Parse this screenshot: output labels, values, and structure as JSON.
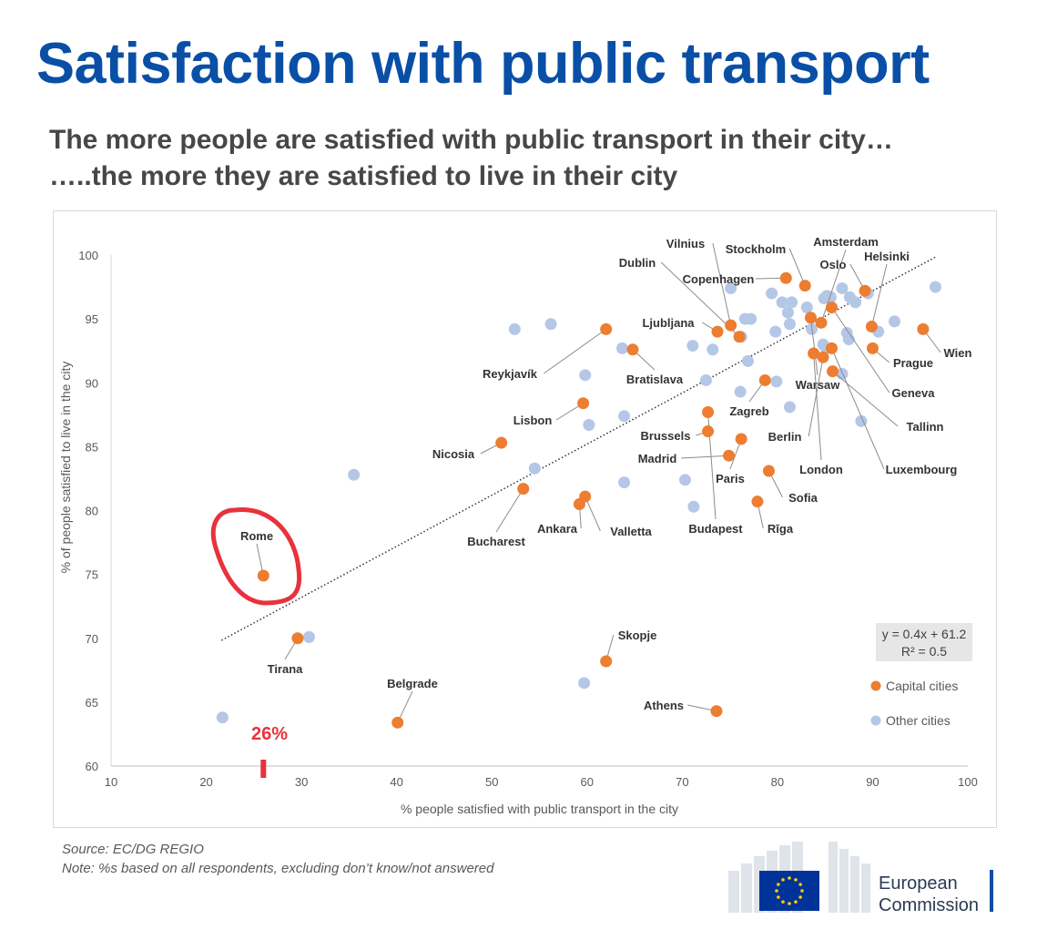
{
  "title": "Satisfaction with public transport",
  "subtitle_line1": "The more people are satisfied with public transport in their city…",
  "subtitle_line2": "…..the more they are satisfied to live in their city",
  "source": "Source: EC/DG REGIO",
  "note": "Note: %s based on all respondents, excluding don’t know/not answered",
  "logo": {
    "line1": "European",
    "line2": "Commission"
  },
  "annotation": {
    "label": "26%",
    "highlighted_city": "Rome",
    "color": "#e8323c"
  },
  "chart_data": {
    "type": "scatter",
    "title": "",
    "xlabel": "% people satisfied with public transport in the city",
    "ylabel": "% of people satisfied to live in the city",
    "xlim": [
      10,
      100
    ],
    "ylim": [
      60,
      100
    ],
    "xticks": [
      10,
      20,
      30,
      40,
      50,
      60,
      70,
      80,
      90,
      100
    ],
    "yticks": [
      60,
      65,
      70,
      75,
      80,
      85,
      90,
      95,
      100
    ],
    "grid": false,
    "legend_position": "right",
    "trendline": {
      "equation": "y = 0.4x + 61.2",
      "r2": "R² = 0.5",
      "slope": 0.4,
      "intercept": 61.2,
      "x_range": [
        21.6,
        96.7
      ]
    },
    "colors": {
      "capital": "#ed7d31",
      "other": "#b4c7e7"
    },
    "series": [
      {
        "name": "Capital cities",
        "points": [
          {
            "label": "Rome",
            "x": 26.0,
            "y": 74.9
          },
          {
            "label": "Tirana",
            "x": 29.6,
            "y": 70.0
          },
          {
            "label": "Belgrade",
            "x": 40.1,
            "y": 63.4
          },
          {
            "label": "Skopje",
            "x": 62.0,
            "y": 68.2
          },
          {
            "label": "Athens",
            "x": 73.6,
            "y": 64.3
          },
          {
            "label": "Bucharest",
            "x": 53.3,
            "y": 81.7
          },
          {
            "label": "Ankara",
            "x": 59.2,
            "y": 80.5
          },
          {
            "label": "Valletta",
            "x": 59.8,
            "y": 81.1
          },
          {
            "label": "Nicosia",
            "x": 51.0,
            "y": 85.3
          },
          {
            "label": "Lisbon",
            "x": 59.6,
            "y": 88.4
          },
          {
            "label": "Reykjavík",
            "x": 62.0,
            "y": 94.2
          },
          {
            "label": "Bratislava",
            "x": 64.8,
            "y": 92.6
          },
          {
            "label": "Budapest",
            "x": 72.7,
            "y": 87.7
          },
          {
            "label": "Brussels",
            "x": 72.7,
            "y": 86.2
          },
          {
            "label": "Madrid",
            "x": 74.9,
            "y": 84.3
          },
          {
            "label": "Paris",
            "x": 76.2,
            "y": 85.6
          },
          {
            "label": "Zagreb",
            "x": 78.7,
            "y": 90.2
          },
          {
            "label": "Sofia",
            "x": 79.1,
            "y": 83.1
          },
          {
            "label": "Rīga",
            "x": 77.9,
            "y": 80.7
          },
          {
            "label": "Ljubljana",
            "x": 73.7,
            "y": 94.0
          },
          {
            "label": "Dublin",
            "x": 76.0,
            "y": 93.6
          },
          {
            "label": "Vilnius",
            "x": 75.1,
            "y": 94.5
          },
          {
            "label": "Copenhagen",
            "x": 80.9,
            "y": 98.2
          },
          {
            "label": "Stockholm",
            "x": 82.9,
            "y": 97.6
          },
          {
            "label": "Amsterdam",
            "x": 84.6,
            "y": 94.7
          },
          {
            "label": "Oslo",
            "x": 89.2,
            "y": 97.2
          },
          {
            "label": "Helsinki",
            "x": 89.9,
            "y": 94.4
          },
          {
            "label": "Wien",
            "x": 95.3,
            "y": 94.2
          },
          {
            "label": "Prague",
            "x": 90.0,
            "y": 92.7
          },
          {
            "label": "Geneva",
            "x": 85.7,
            "y": 95.9
          },
          {
            "label": "Tallinn",
            "x": 85.8,
            "y": 90.9
          },
          {
            "label": "Warsaw",
            "x": 83.5,
            "y": 95.1
          },
          {
            "label": "Berlin",
            "x": 84.8,
            "y": 92.0
          },
          {
            "label": "London",
            "x": 83.8,
            "y": 92.3
          },
          {
            "label": "Luxembourg",
            "x": 85.7,
            "y": 92.7
          }
        ]
      },
      {
        "name": "Other cities",
        "points": [
          {
            "x": 21.7,
            "y": 63.8
          },
          {
            "x": 30.8,
            "y": 70.1
          },
          {
            "x": 35.5,
            "y": 82.8
          },
          {
            "x": 54.5,
            "y": 83.3
          },
          {
            "x": 52.4,
            "y": 94.2
          },
          {
            "x": 56.2,
            "y": 94.6
          },
          {
            "x": 59.8,
            "y": 90.6
          },
          {
            "x": 60.2,
            "y": 86.7
          },
          {
            "x": 63.9,
            "y": 87.4
          },
          {
            "x": 63.9,
            "y": 82.2
          },
          {
            "x": 59.7,
            "y": 66.5
          },
          {
            "x": 63.7,
            "y": 92.7
          },
          {
            "x": 70.3,
            "y": 82.4
          },
          {
            "x": 71.2,
            "y": 80.3
          },
          {
            "x": 71.1,
            "y": 92.9
          },
          {
            "x": 72.5,
            "y": 90.2
          },
          {
            "x": 73.2,
            "y": 92.6
          },
          {
            "x": 75.1,
            "y": 97.4
          },
          {
            "x": 76.2,
            "y": 93.6
          },
          {
            "x": 76.6,
            "y": 95.0
          },
          {
            "x": 77.2,
            "y": 95.0
          },
          {
            "x": 76.9,
            "y": 91.7
          },
          {
            "x": 76.1,
            "y": 89.3
          },
          {
            "x": 79.4,
            "y": 97.0
          },
          {
            "x": 79.8,
            "y": 94.0
          },
          {
            "x": 79.9,
            "y": 90.1
          },
          {
            "x": 80.5,
            "y": 96.3
          },
          {
            "x": 81.1,
            "y": 95.5
          },
          {
            "x": 81.5,
            "y": 96.3
          },
          {
            "x": 81.3,
            "y": 94.6
          },
          {
            "x": 81.3,
            "y": 88.1
          },
          {
            "x": 83.1,
            "y": 95.9
          },
          {
            "x": 83.6,
            "y": 94.2
          },
          {
            "x": 84.9,
            "y": 96.6
          },
          {
            "x": 85.2,
            "y": 96.8
          },
          {
            "x": 85.1,
            "y": 92.7
          },
          {
            "x": 85.6,
            "y": 96.7
          },
          {
            "x": 86.8,
            "y": 97.4
          },
          {
            "x": 87.6,
            "y": 96.7
          },
          {
            "x": 88.2,
            "y": 96.3
          },
          {
            "x": 89.5,
            "y": 97.0
          },
          {
            "x": 87.3,
            "y": 93.9
          },
          {
            "x": 87.5,
            "y": 93.4
          },
          {
            "x": 86.8,
            "y": 90.7
          },
          {
            "x": 88.8,
            "y": 87.0
          },
          {
            "x": 90.6,
            "y": 94.0
          },
          {
            "x": 92.3,
            "y": 94.8
          },
          {
            "x": 96.6,
            "y": 97.5
          },
          {
            "x": 84.8,
            "y": 93.0
          }
        ]
      }
    ]
  }
}
